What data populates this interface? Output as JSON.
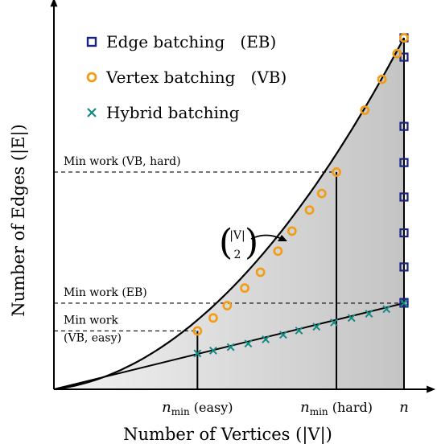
{
  "colors": {
    "eb": "#1a237e",
    "vb": "#f39c12",
    "hybrid": "#138a83",
    "curve": "#000000",
    "fill_light": "#f3f3f3",
    "fill_dark": "#c4c4c4"
  },
  "chart_data": {
    "type": "scatter",
    "xlabel": "Number of Vertices (|V|)",
    "ylabel": "Number of Edges (|E|)",
    "xlim": [
      0,
      1.09
    ],
    "ylim": [
      0,
      1.1
    ],
    "grid": false,
    "legend_position": "top-left",
    "curve_label": "(|V| over 2)",
    "curve_label_parts": {
      "top": "|V|",
      "bottom": "2"
    },
    "x_ticks": [
      {
        "value": 0.41,
        "label": "n_min (easy)",
        "main": "n",
        "sub": "min",
        "rest": " (easy)"
      },
      {
        "value": 0.807,
        "label": "n_min (hard)",
        "main": "n",
        "sub": "min",
        "rest": " (hard)"
      },
      {
        "value": 1.0,
        "label": "n",
        "main": "n",
        "sub": "",
        "rest": ""
      }
    ],
    "annotations": [
      {
        "lines": [
          "Min work (VB, hard)"
        ],
        "y": 0.618
      },
      {
        "lines": [
          "Min work (EB)"
        ],
        "y": 0.245
      },
      {
        "lines": [
          "Min work",
          "(VB, easy)"
        ],
        "y": 0.166
      }
    ],
    "series": [
      {
        "name": "Edge batching   (EB)",
        "marker": "square",
        "x": [
          1.0,
          1.0,
          1.0,
          1.0,
          1.0,
          1.0,
          1.0,
          1.0,
          1.0
        ],
        "y": [
          1.0,
          0.945,
          0.748,
          0.645,
          0.547,
          0.445,
          0.348,
          0.247,
          0.245
        ]
      },
      {
        "name": "Vertex batching   (VB)",
        "marker": "circle",
        "x": [
          0.41,
          0.455,
          0.495,
          0.545,
          0.59,
          0.64,
          0.68,
          0.73,
          0.765,
          0.807,
          0.888,
          0.937,
          0.98,
          1.0
        ],
        "y": [
          0.166,
          0.203,
          0.238,
          0.288,
          0.333,
          0.393,
          0.45,
          0.51,
          0.557,
          0.618,
          0.794,
          0.882,
          0.955,
          1.0
        ]
      },
      {
        "name": "Hybrid batching",
        "marker": "x",
        "x": [
          0.41,
          0.455,
          0.505,
          0.555,
          0.605,
          0.655,
          0.7,
          0.75,
          0.8,
          0.85,
          0.9,
          0.95,
          1.0
        ],
        "y": [
          0.102,
          0.11,
          0.12,
          0.13,
          0.142,
          0.155,
          0.167,
          0.178,
          0.19,
          0.203,
          0.215,
          0.228,
          0.245
        ]
      }
    ]
  }
}
